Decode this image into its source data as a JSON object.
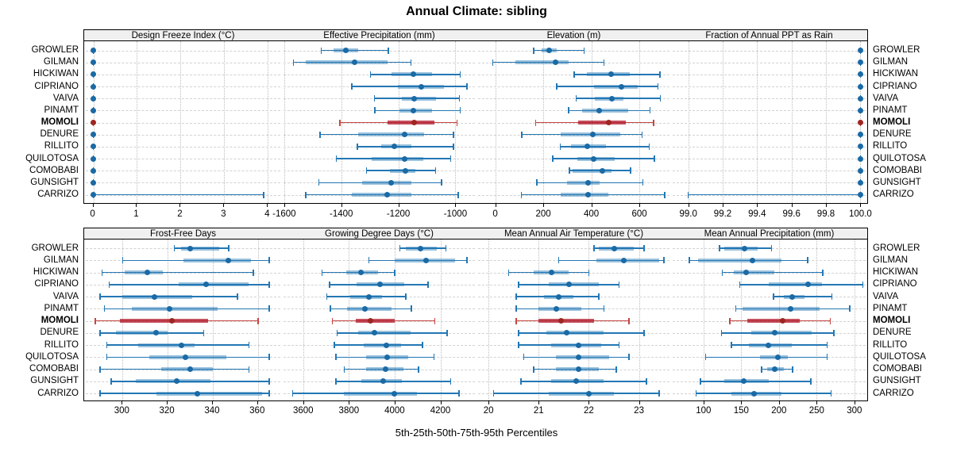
{
  "title": "Annual Climate: sibling",
  "footer": "5th-25th-50th-75th-95th Percentiles",
  "highlight_site": "MOMOLI",
  "colors": {
    "blue_line": "#2377b4",
    "blue_band": "rgba(35,119,180,0.45)",
    "blue_dot": "#1a6aa5",
    "red_line": "#c64540",
    "red_band": "rgba(178,24,43,0.75)",
    "red_dot": "#9e2621",
    "strip_bg": "#f0f0f0",
    "grid": "#c8c8c8",
    "border": "#000000"
  },
  "sites": [
    "GROWLER",
    "GILMAN",
    "HICKIWAN",
    "CIPRIANO",
    "VAIVA",
    "PINAMT",
    "MOMOLI",
    "DENURE",
    "RILLITO",
    "QUILOTOSA",
    "COMOBABI",
    "GUNSIGHT",
    "CARRIZO"
  ],
  "chart_data": {
    "type": "dot-whisker percentile ranges (trellis, 2 rows x 4 columns)",
    "percentiles": [
      "5th",
      "25th",
      "50th",
      "75th",
      "95th"
    ],
    "legend_note": "dot = 50th percentile, thick band = 25th-75th, thin line with caps = 5th-95th",
    "panels": [
      {
        "title": "Design Freeze Index (°C)",
        "block": 0,
        "domain": [
          -0.21,
          4.34
        ],
        "ticks": [
          0,
          1,
          2,
          3,
          4
        ],
        "tick_labels": [
          "0",
          "1",
          "2",
          "3",
          "4"
        ],
        "data": {
          "GROWLER": [
            0,
            0,
            0,
            0,
            0
          ],
          "GILMAN": [
            0,
            0,
            0,
            0,
            0
          ],
          "HICKIWAN": [
            0,
            0,
            0,
            0,
            0
          ],
          "CIPRIANO": [
            0,
            0,
            0,
            0,
            0
          ],
          "VAIVA": [
            0,
            0,
            0,
            0,
            0
          ],
          "PINAMT": [
            0,
            0,
            0,
            0,
            0
          ],
          "MOMOLI": [
            0,
            0,
            0,
            0,
            0
          ],
          "DENURE": [
            0,
            0,
            0,
            0,
            0
          ],
          "RILLITO": [
            0,
            0,
            0,
            0,
            0
          ],
          "QUILOTOSA": [
            0,
            0,
            0,
            0,
            0
          ],
          "COMOBABI": [
            0,
            0,
            0,
            0,
            0
          ],
          "GUNSIGHT": [
            0,
            0,
            0,
            0,
            0
          ],
          "CARRIZO": [
            0,
            0,
            0,
            0,
            3.9
          ]
        }
      },
      {
        "title": "Effective Precipitation (mm)",
        "block": 0,
        "domain": [
          -1608,
          -926
        ],
        "ticks": [
          -1600,
          -1400,
          -1200,
          -1000
        ],
        "tick_labels": [
          "-1600",
          "-1400",
          "-1200",
          "-1000"
        ],
        "data": {
          "GROWLER": [
            -1470,
            -1428,
            -1383,
            -1340,
            -1235
          ],
          "GILMAN": [
            -1567,
            -1525,
            -1352,
            -1238,
            -1155
          ],
          "HICKIWAN": [
            -1298,
            -1225,
            -1148,
            -1081,
            -983
          ],
          "CIPRIANO": [
            -1363,
            -1201,
            -1120,
            -1039,
            -960
          ],
          "VAIVA": [
            -1284,
            -1187,
            -1145,
            -1067,
            -986
          ],
          "PINAMT": [
            -1282,
            -1196,
            -1148,
            -1081,
            -983
          ],
          "MOMOLI": [
            -1405,
            -1238,
            -1145,
            -1073,
            -994
          ],
          "DENURE": [
            -1474,
            -1340,
            -1178,
            -1111,
            -1007
          ],
          "RILLITO": [
            -1344,
            -1261,
            -1215,
            -1155,
            -1007
          ],
          "QUILOTOSA": [
            -1417,
            -1293,
            -1178,
            -1113,
            -1016
          ],
          "COMOBABI": [
            -1312,
            -1229,
            -1176,
            -1141,
            -1070
          ],
          "GUNSIGHT": [
            -1479,
            -1326,
            -1224,
            -1155,
            -1048
          ],
          "CARRIZO": [
            -1525,
            -1363,
            -1238,
            -1155,
            -990
          ]
        }
      },
      {
        "title": "Elevation (m)",
        "block": 0,
        "domain": [
          -78,
          732
        ],
        "ticks": [
          0,
          200,
          400,
          600
        ],
        "tick_labels": [
          "0",
          "200",
          "400",
          "600"
        ],
        "data": {
          "GROWLER": [
            160,
            193,
            225,
            256,
            370
          ],
          "GILMAN": [
            -10,
            85,
            250,
            305,
            452
          ],
          "HICKIWAN": [
            328,
            383,
            482,
            559,
            685
          ],
          "CIPRIANO": [
            256,
            410,
            524,
            592,
            677
          ],
          "VAIVA": [
            337,
            414,
            485,
            535,
            687
          ],
          "PINAMT": [
            306,
            361,
            434,
            555,
            645
          ],
          "MOMOLI": [
            168,
            344,
            474,
            542,
            660
          ],
          "DENURE": [
            111,
            271,
            405,
            520,
            611
          ],
          "RILLITO": [
            271,
            317,
            383,
            460,
            641
          ],
          "QUILOTOSA": [
            240,
            342,
            408,
            498,
            663
          ],
          "COMOBABI": [
            308,
            322,
            445,
            485,
            564
          ],
          "GUNSIGHT": [
            174,
            300,
            386,
            436,
            614
          ],
          "CARRIZO": [
            108,
            273,
            388,
            471,
            705
          ]
        }
      },
      {
        "title": "Fraction of Annual PPT as Rain",
        "block": 0,
        "domain": [
          98.9,
          100.04
        ],
        "ticks": [
          99.0,
          99.2,
          99.4,
          99.6,
          99.8,
          100.0
        ],
        "tick_labels": [
          "99.0",
          "99.2",
          "99.4",
          "99.6",
          "99.8",
          "100.0"
        ],
        "data": {
          "GROWLER": [
            100,
            100,
            100,
            100,
            100
          ],
          "GILMAN": [
            100,
            100,
            100,
            100,
            100
          ],
          "HICKIWAN": [
            100,
            100,
            100,
            100,
            100
          ],
          "CIPRIANO": [
            100,
            100,
            100,
            100,
            100
          ],
          "VAIVA": [
            100,
            100,
            100,
            100,
            100
          ],
          "PINAMT": [
            100,
            100,
            100,
            100,
            100
          ],
          "MOMOLI": [
            100,
            100,
            100,
            100,
            100
          ],
          "DENURE": [
            100,
            100,
            100,
            100,
            100
          ],
          "RILLITO": [
            100,
            100,
            100,
            100,
            100
          ],
          "QUILOTOSA": [
            100,
            100,
            100,
            100,
            100
          ],
          "COMOBABI": [
            100,
            100,
            100,
            100,
            100
          ],
          "GUNSIGHT": [
            100,
            100,
            100,
            100,
            100
          ],
          "CARRIZO": [
            99.0,
            100,
            100,
            100,
            100
          ]
        }
      },
      {
        "title": "Frost-Free Days",
        "block": 1,
        "domain": [
          283,
          371
        ],
        "ticks": [
          300,
          320,
          340,
          360
        ],
        "tick_labels": [
          "300",
          "320",
          "340",
          "360"
        ],
        "data": {
          "GROWLER": [
            323,
            326,
            330,
            343,
            347
          ],
          "GILMAN": [
            300,
            327,
            347,
            357,
            365
          ],
          "HICKIWAN": [
            291,
            301,
            311,
            318,
            358
          ],
          "CIPRIANO": [
            294,
            325,
            337,
            356,
            365
          ],
          "VAIVA": [
            290,
            300,
            314,
            331,
            351
          ],
          "PINAMT": [
            292,
            304,
            321,
            342,
            365
          ],
          "MOMOLI": [
            288,
            299,
            322,
            338,
            360
          ],
          "DENURE": [
            290,
            297,
            315,
            320,
            336
          ],
          "RILLITO": [
            293,
            307,
            326,
            332,
            356
          ],
          "QUILOTOSA": [
            293,
            312,
            328,
            346,
            365
          ],
          "COMOBABI": [
            290,
            317,
            330,
            340,
            356
          ],
          "GUNSIGHT": [
            295,
            306,
            324,
            339,
            365
          ],
          "CARRIZO": [
            290,
            315,
            333,
            362,
            365
          ]
        }
      },
      {
        "title": "Growing Degree Days (°C)",
        "block": 1,
        "domain": [
          3507,
          4358
        ],
        "ticks": [
          3600,
          3800,
          4000,
          4200
        ],
        "tick_labels": [
          "3600",
          "3800",
          "4000",
          "4200"
        ],
        "data": {
          "GROWLER": [
            4023,
            4050,
            4114,
            4183,
            4224
          ],
          "GILMAN": [
            3887,
            4000,
            4137,
            4264,
            4316
          ],
          "HICKIWAN": [
            3682,
            3789,
            3853,
            3928,
            4000
          ],
          "CIPRIANO": [
            3716,
            3835,
            3937,
            4041,
            4146
          ],
          "VAIVA": [
            3704,
            3806,
            3888,
            3943,
            4048
          ],
          "PINAMT": [
            3719,
            3792,
            3870,
            3986,
            4073
          ],
          "MOMOLI": [
            3728,
            3830,
            3893,
            4001,
            4175
          ],
          "DENURE": [
            3748,
            3841,
            3913,
            4071,
            4230
          ],
          "RILLITO": [
            3737,
            3864,
            3965,
            4027,
            4122
          ],
          "QUILOTOSA": [
            3743,
            3874,
            3966,
            4061,
            4172
          ],
          "COMOBABI": [
            3780,
            3876,
            3960,
            4040,
            4105
          ],
          "GUNSIGHT": [
            3743,
            3853,
            3949,
            4032,
            4245
          ],
          "CARRIZO": [
            3554,
            3777,
            3998,
            4096,
            4282
          ]
        }
      },
      {
        "title": "Mean Annual Air Temperature (°C)",
        "block": 1,
        "domain": [
          19.76,
          23.64
        ],
        "ticks": [
          20,
          21,
          22,
          23
        ],
        "tick_labels": [
          "20",
          "21",
          "22",
          "23"
        ],
        "data": {
          "GROWLER": [
            22.1,
            22.2,
            22.5,
            22.9,
            23.1
          ],
          "GILMAN": [
            21.4,
            22.15,
            22.7,
            23.4,
            23.5
          ],
          "HICKIWAN": [
            20.4,
            20.9,
            21.25,
            21.6,
            22.0
          ],
          "CIPRIANO": [
            20.6,
            21.2,
            21.6,
            22.2,
            22.6
          ],
          "VAIVA": [
            20.55,
            21.1,
            21.4,
            21.7,
            22.2
          ],
          "PINAMT": [
            20.55,
            21.0,
            21.35,
            21.85,
            22.3
          ],
          "MOMOLI": [
            20.55,
            21.0,
            21.45,
            22.1,
            22.8
          ],
          "DENURE": [
            20.6,
            21.15,
            21.55,
            22.3,
            23.1
          ],
          "RILLITO": [
            20.6,
            21.25,
            21.8,
            22.25,
            22.6
          ],
          "QUILOTOSA": [
            20.7,
            21.35,
            21.8,
            22.4,
            22.8
          ],
          "COMOBABI": [
            20.9,
            21.35,
            21.8,
            22.2,
            22.55
          ],
          "GUNSIGHT": [
            20.65,
            21.25,
            21.75,
            22.3,
            23.15
          ],
          "CARRIZO": [
            20.1,
            21.2,
            22.0,
            22.5,
            23.4
          ]
        }
      },
      {
        "title": "Mean Annual Precipitation (mm)",
        "block": 1,
        "domain": [
          57,
          317
        ],
        "ticks": [
          100,
          150,
          200,
          250,
          300
        ],
        "tick_labels": [
          "100",
          "150",
          "200",
          "250",
          "300"
        ],
        "data": {
          "GROWLER": [
            121,
            128,
            154,
            172,
            190
          ],
          "GILMAN": [
            81,
            93,
            165,
            203,
            238
          ],
          "HICKIWAN": [
            125,
            140,
            156,
            194,
            258
          ],
          "CIPRIANO": [
            148,
            186,
            239,
            257,
            311
          ],
          "VAIVA": [
            193,
            206,
            217,
            234,
            270
          ],
          "PINAMT": [
            143,
            152,
            215,
            254,
            294
          ],
          "MOMOLI": [
            135,
            158,
            205,
            228,
            268
          ],
          "DENURE": [
            124,
            163,
            194,
            243,
            273
          ],
          "RILLITO": [
            137,
            160,
            186,
            217,
            264
          ],
          "QUILOTOSA": [
            103,
            175,
            199,
            212,
            264
          ],
          "COMOBABI": [
            177,
            184,
            194,
            207,
            218
          ],
          "GUNSIGHT": [
            96,
            128,
            153,
            187,
            242
          ],
          "CARRIZO": [
            90,
            137,
            167,
            203,
            269
          ]
        }
      }
    ]
  }
}
